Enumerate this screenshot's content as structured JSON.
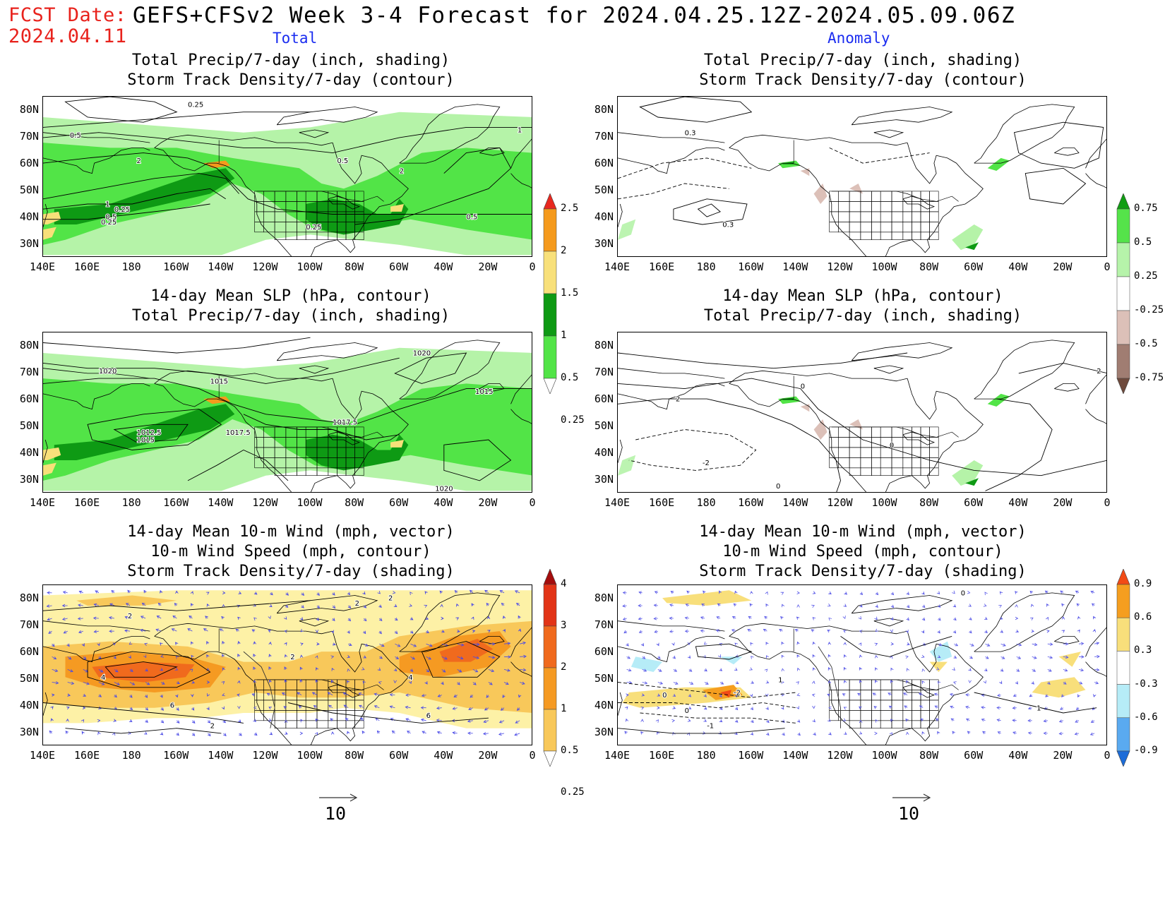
{
  "header": {
    "fcst_label": "FCST Date:",
    "fcst_date": "2024.04.11",
    "title": "GEFS+CFSv2 Week 3-4 Forecast for 2024.04.25.12Z-2024.05.09.06Z",
    "col_total": "Total",
    "col_anomaly": "Anomaly"
  },
  "axes": {
    "lat_labels": [
      "80N",
      "70N",
      "60N",
      "50N",
      "40N",
      "30N"
    ],
    "lon_labels": [
      "140E",
      "160E",
      "180",
      "160W",
      "140W",
      "120W",
      "100W",
      "80W",
      "60W",
      "40W",
      "20W",
      "0"
    ]
  },
  "panels": {
    "p1": {
      "title1": "Total Precip/7-day (inch, shading)",
      "title2": "Storm Track Density/7-day (contour)"
    },
    "p2": {
      "title1": "Total Precip/7-day (inch, shading)",
      "title2": "Storm Track Density/7-day (contour)"
    },
    "p3": {
      "title1": "14-day Mean SLP (hPa, contour)",
      "title2": "Total Precip/7-day (inch, shading)"
    },
    "p4": {
      "title1": "14-day Mean SLP (hPa, contour)",
      "title2": "Total Precip/7-day (inch, shading)"
    },
    "p5": {
      "title1": "14-day Mean 10-m Wind (mph, vector)",
      "title2": "10-m Wind Speed (mph, contour)",
      "title3": "Storm Track Density/7-day (shading)"
    },
    "p6": {
      "title1": "14-day Mean 10-m Wind (mph, vector)",
      "title2": "10-m Wind Speed (mph, contour)",
      "title3": "Storm Track Density/7-day (shading)"
    }
  },
  "contour_labels": {
    "p1": [
      "0.25",
      "0.5",
      "0.25",
      "1",
      "2",
      "0.5",
      "2",
      "1",
      "0.5",
      "0.25",
      "0.5",
      "0.25"
    ],
    "p2": [
      "0.3",
      "0.3"
    ],
    "p3": [
      "1020",
      "1020",
      "1015",
      "1017.5",
      "1012.5",
      "1015",
      "1017.5",
      "1015",
      "1020"
    ],
    "p4": [
      "0",
      "2",
      "-2",
      "0",
      "0",
      "2"
    ],
    "p5": [
      "2",
      "2",
      "4",
      "6",
      "2",
      "4",
      "6",
      "2",
      "2"
    ],
    "p6": [
      "0",
      "-2",
      "0",
      "1",
      "0",
      "-1",
      "1"
    ]
  },
  "colorbars": {
    "precip_total": {
      "labels": [
        "2.5",
        "2",
        "1.5",
        "1",
        "0.5",
        "0.25"
      ],
      "colors": [
        "#e8281f",
        "#f59a1c",
        "#f8e07a",
        "#0e9a14",
        "#52e447",
        "#b5f3a8"
      ]
    },
    "precip_anom": {
      "labels": [
        "0.75",
        "0.5",
        "0.25",
        "-0.25",
        "-0.5",
        "-0.75"
      ],
      "colors": [
        "#109d13",
        "#55e34a",
        "#b6f3aa",
        "#ffffff",
        "#dcc0b8",
        "#a07d72",
        "#6e4a3c"
      ]
    },
    "storm_total": {
      "labels": [
        "4",
        "3",
        "2",
        "1",
        "0.5",
        "0.25"
      ],
      "colors": [
        "#a40d0d",
        "#e23417",
        "#f06a1d",
        "#f59a22",
        "#f8c85a",
        "#fdf1a6"
      ]
    },
    "storm_anom": {
      "labels": [
        "0.9",
        "0.6",
        "0.3",
        "-0.3",
        "-0.6",
        "-0.9"
      ],
      "colors": [
        "#f24b16",
        "#f59e1f",
        "#f8df7b",
        "#ffffff",
        "#b6ecf7",
        "#5aaaf0",
        "#1c6cd8"
      ]
    }
  },
  "vector_ref": {
    "left": "10",
    "right": "10"
  },
  "colors": {
    "precip_green_light": "#b5f3a8",
    "precip_green": "#52e447",
    "precip_green_dark": "#0e9a14",
    "wind_vector": "#4a4ae6"
  }
}
